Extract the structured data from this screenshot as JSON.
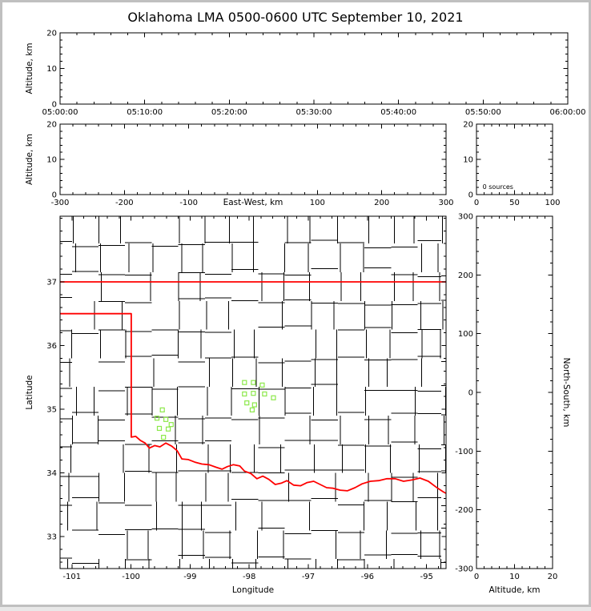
{
  "title": "Oklahoma LMA 0500-0600 UTC September 10, 2021",
  "colors": {
    "background": "#ffffff",
    "frame": "#c0c0c0",
    "axis": "#000000",
    "county_lines": "#b9b9b9",
    "state_border": "#ff0000",
    "station_marker": "#8ce84a"
  },
  "chart_data": {
    "type": "scatter",
    "description": "XLMA-style lightning mapping display for the Oklahoma LMA, 0500-0600 UTC 10 September 2021. No lightning sources were located during the hour (all source panels empty). Green open squares on the plan-view map mark LMA station locations; red line is the Oklahoma state border, gray lines are county boundaries.",
    "source_count": 0,
    "panels": [
      {
        "id": "time-height",
        "x": {
          "min": 0,
          "max": 3600,
          "minor": 120,
          "ticks": [
            {
              "v": 0,
              "t": "05:00:00"
            },
            {
              "v": 600,
              "t": "05:10:00"
            },
            {
              "v": 1200,
              "t": "05:20:00"
            },
            {
              "v": 1800,
              "t": "05:30:00"
            },
            {
              "v": 2400,
              "t": "05:40:00"
            },
            {
              "v": 3000,
              "t": "05:50:00"
            },
            {
              "v": 3600,
              "t": "06:00:00"
            }
          ]
        },
        "y": {
          "min": 0,
          "max": 20,
          "minor": 2,
          "label": "Altitude, km",
          "ticks": [
            {
              "v": 0,
              "t": "0"
            },
            {
              "v": 10,
              "t": "10"
            },
            {
              "v": 20,
              "t": "20"
            }
          ]
        },
        "points": []
      },
      {
        "id": "ew-height",
        "x": {
          "min": -300,
          "max": 300,
          "minor": 20,
          "title_inline": "East-West, km",
          "ticks": [
            {
              "v": -300,
              "t": "-300"
            },
            {
              "v": -200,
              "t": "-200"
            },
            {
              "v": -100,
              "t": "-100"
            },
            {
              "v": 100,
              "t": "100"
            },
            {
              "v": 200,
              "t": "200"
            },
            {
              "v": 300,
              "t": "300"
            }
          ]
        },
        "y": {
          "min": 0,
          "max": 20,
          "minor": 2,
          "label": "Altitude, km",
          "ticks": [
            {
              "v": 0,
              "t": "0"
            },
            {
              "v": 10,
              "t": "10"
            },
            {
              "v": 20,
              "t": "20"
            }
          ]
        },
        "points": []
      },
      {
        "id": "histogram",
        "x": {
          "min": 0,
          "max": 100,
          "minor": 10,
          "ticks": [
            {
              "v": 0,
              "t": "0"
            },
            {
              "v": 50,
              "t": "50"
            },
            {
              "v": 100,
              "t": "100"
            }
          ]
        },
        "y": {
          "min": 0,
          "max": 20,
          "minor": 2,
          "ticks": [
            {
              "v": 0,
              "t": "0"
            },
            {
              "v": 10,
              "t": "10"
            },
            {
              "v": 20,
              "t": "20"
            }
          ]
        },
        "annotation": {
          "text": "0 sources",
          "x": 8,
          "y": 1.6
        }
      },
      {
        "id": "plan-map",
        "map": true,
        "x": {
          "min": -101.2,
          "max": -94.67,
          "minor": 0.2,
          "label": "Longitude",
          "ticks": [
            {
              "v": -101,
              "t": "-101"
            },
            {
              "v": -100,
              "t": "-100"
            },
            {
              "v": -99,
              "t": "-99"
            },
            {
              "v": -98,
              "t": "-98"
            },
            {
              "v": -97,
              "t": "-97"
            },
            {
              "v": -96,
              "t": "-96"
            },
            {
              "v": -95,
              "t": "-95"
            }
          ]
        },
        "y": {
          "min": 32.5,
          "max": 38.03,
          "minor": 0.2,
          "label": "Latitude",
          "ticks": [
            {
              "v": 33,
              "t": "33"
            },
            {
              "v": 34,
              "t": "34"
            },
            {
              "v": 35,
              "t": "35"
            },
            {
              "v": 36,
              "t": "36"
            },
            {
              "v": 37,
              "t": "37"
            }
          ]
        },
        "points": []
      },
      {
        "id": "ns-height",
        "x": {
          "min": 0,
          "max": 20,
          "minor": 2,
          "label": "Altitude, km",
          "ticks": [
            {
              "v": 0,
              "t": "0"
            },
            {
              "v": 10,
              "t": "10"
            },
            {
              "v": 20,
              "t": "20"
            }
          ]
        },
        "y": {
          "min": -300,
          "max": 300,
          "minor": 20,
          "label_right": "North-South, km",
          "ticks": [
            {
              "v": 300,
              "t": "300"
            },
            {
              "v": 200,
              "t": "200"
            },
            {
              "v": 100,
              "t": "100"
            },
            {
              "v": 0,
              "t": "0"
            },
            {
              "v": -100,
              "t": "-100"
            },
            {
              "v": -200,
              "t": "-200"
            },
            {
              "v": -300,
              "t": "-300"
            }
          ]
        },
        "points": []
      }
    ],
    "stations_lon_lat": [
      [
        -98.08,
        35.42
      ],
      [
        -97.93,
        35.42
      ],
      [
        -97.78,
        35.38
      ],
      [
        -98.08,
        35.24
      ],
      [
        -97.93,
        35.25
      ],
      [
        -97.74,
        35.24
      ],
      [
        -97.59,
        35.18
      ],
      [
        -98.04,
        35.1
      ],
      [
        -97.91,
        35.07
      ],
      [
        -97.95,
        34.99
      ],
      [
        -99.47,
        34.99
      ],
      [
        -99.56,
        34.86
      ],
      [
        -99.41,
        34.84
      ],
      [
        -99.52,
        34.7
      ],
      [
        -99.37,
        34.69
      ],
      [
        -99.45,
        34.56
      ],
      [
        -99.32,
        34.76
      ]
    ],
    "state_border_segments": [
      [
        [
          -101.25,
          37.0
        ],
        [
          -94.55,
          37.0
        ]
      ],
      [
        [
          -101.25,
          36.5
        ],
        [
          -99.996,
          36.5
        ],
        [
          -99.996,
          34.563
        ],
        [
          -99.92,
          34.575
        ],
        [
          -99.84,
          34.51
        ],
        [
          -99.76,
          34.47
        ],
        [
          -99.69,
          34.39
        ],
        [
          -99.6,
          34.43
        ],
        [
          -99.51,
          34.41
        ],
        [
          -99.41,
          34.47
        ],
        [
          -99.31,
          34.42
        ],
        [
          -99.22,
          34.35
        ],
        [
          -99.14,
          34.22
        ],
        [
          -99.03,
          34.21
        ],
        [
          -98.92,
          34.17
        ],
        [
          -98.8,
          34.14
        ],
        [
          -98.68,
          34.13
        ],
        [
          -98.56,
          34.09
        ],
        [
          -98.46,
          34.06
        ],
        [
          -98.37,
          34.1
        ],
        [
          -98.27,
          34.13
        ],
        [
          -98.16,
          34.11
        ],
        [
          -98.08,
          34.03
        ],
        [
          -97.97,
          33.99
        ],
        [
          -97.87,
          33.91
        ],
        [
          -97.77,
          33.95
        ],
        [
          -97.67,
          33.9
        ],
        [
          -97.56,
          33.82
        ],
        [
          -97.46,
          33.84
        ],
        [
          -97.36,
          33.88
        ],
        [
          -97.25,
          33.81
        ],
        [
          -97.13,
          33.8
        ],
        [
          -97.02,
          33.85
        ],
        [
          -96.91,
          33.87
        ],
        [
          -96.8,
          33.82
        ],
        [
          -96.69,
          33.77
        ],
        [
          -96.58,
          33.76
        ],
        [
          -96.46,
          33.73
        ],
        [
          -96.34,
          33.72
        ],
        [
          -96.21,
          33.77
        ],
        [
          -96.09,
          33.83
        ],
        [
          -95.95,
          33.87
        ],
        [
          -95.81,
          33.88
        ],
        [
          -95.67,
          33.91
        ],
        [
          -95.53,
          33.91
        ],
        [
          -95.39,
          33.87
        ],
        [
          -95.25,
          33.89
        ],
        [
          -95.11,
          33.92
        ],
        [
          -94.97,
          33.87
        ],
        [
          -94.84,
          33.78
        ],
        [
          -94.71,
          33.7
        ],
        [
          -94.58,
          33.64
        ]
      ]
    ],
    "county_grid": {
      "lons": [
        -101.0,
        -100.55,
        -100.1,
        -99.65,
        -99.2,
        -98.75,
        -98.3,
        -97.85,
        -97.4,
        -96.95,
        -96.5,
        -96.05,
        -95.6,
        -95.15,
        -94.75
      ],
      "lats": [
        32.65,
        33.1,
        33.55,
        34.0,
        34.45,
        34.9,
        35.35,
        35.8,
        36.25,
        36.7,
        37.15,
        37.6
      ]
    }
  }
}
